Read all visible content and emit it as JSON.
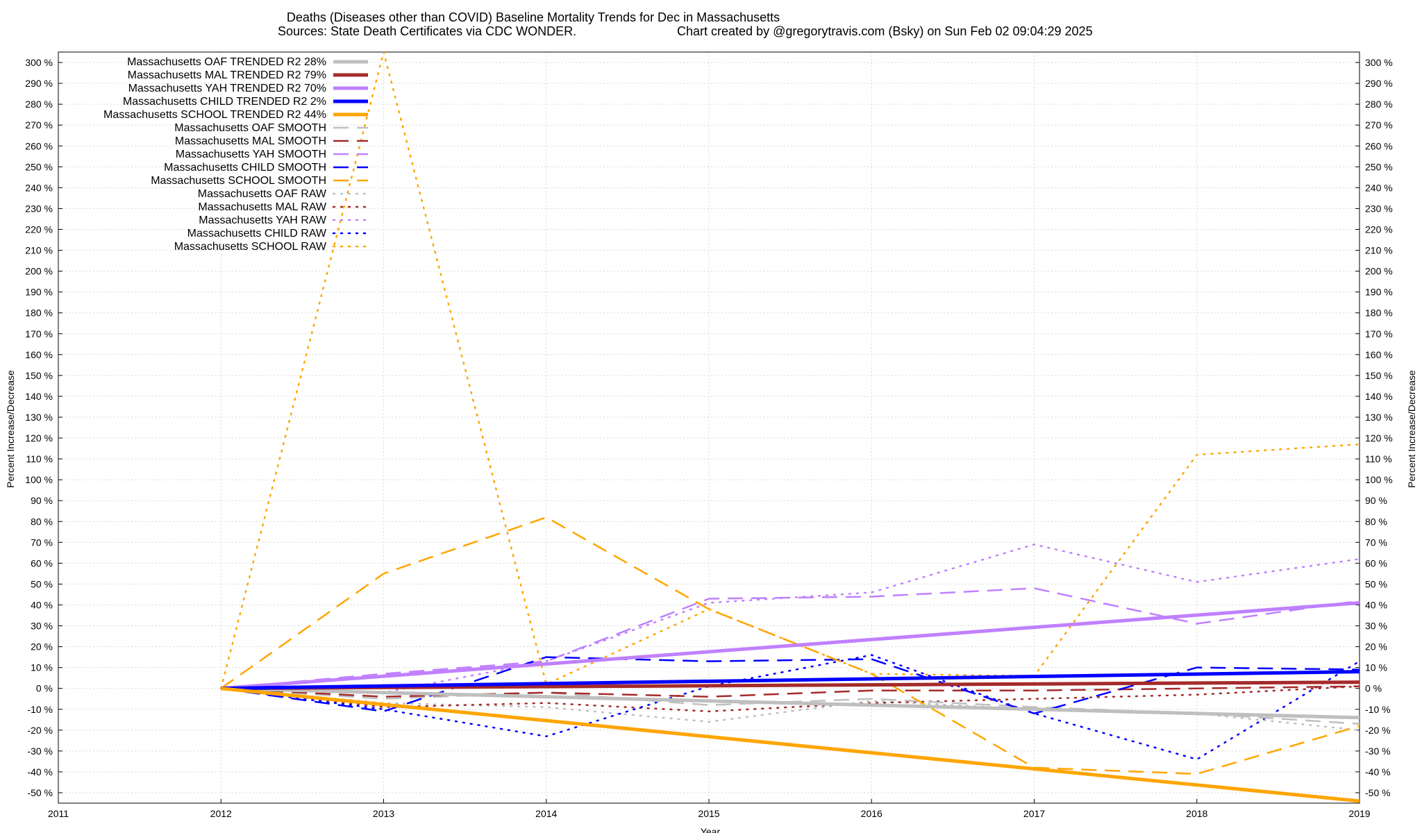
{
  "chart_data": {
    "type": "line",
    "title": "Deaths (Diseases other than COVID)  Baseline Mortality Trends for Dec in Massachusetts",
    "subtitle_left": "Sources: State Death Certificates via CDC WONDER.",
    "subtitle_right": "Chart created by @gregorytravis.com (Bsky) on Sun Feb 02 09:04:29 2025",
    "xlabel": "Year",
    "ylabel": "Percent Increase/Decrease",
    "xlim": [
      2011,
      2019
    ],
    "ylim": [
      -55,
      305
    ],
    "x_ticks": [
      "2011",
      "2012",
      "2013",
      "2014",
      "2015",
      "2016",
      "2017",
      "2018",
      "2019"
    ],
    "y_ticks_left": [
      "300 %",
      "290 %",
      "280 %",
      "270 %",
      "260 %",
      "250 %",
      "240 %",
      "230 %",
      "220 %",
      "210 %",
      "200 %",
      "190 %",
      "180 %",
      "170 %",
      "160 %",
      "150 %",
      "140 %",
      "130 %",
      "120 %",
      "110 %",
      "100 %",
      "90 %",
      "80 %",
      "70 %",
      "60 %",
      "50 %",
      "40 %",
      "30 %",
      "20 %",
      "10 %",
      "0 %",
      "-10 %",
      "-20 %",
      "-30 %",
      "-40 %",
      "-50 %"
    ],
    "y_ticks_right": [
      "300 %",
      "290 %",
      "280 %",
      "270 %",
      "260 %",
      "250 %",
      "240 %",
      "230 %",
      "220 %",
      "210 %",
      "200 %",
      "190 %",
      "180 %",
      "170 %",
      "160 %",
      "150 %",
      "140 %",
      "130 %",
      "120 %",
      "110 %",
      "100 %",
      "90 %",
      "80 %",
      "70 %",
      "60 %",
      "50 %",
      "40 %",
      "30 %",
      "20 %",
      "10 %",
      "0 %",
      "-10 %",
      "-20 %",
      "-30 %",
      "-40 %",
      "-50 %"
    ],
    "legend_position": "top-left",
    "grid": true,
    "series": [
      {
        "name": "Massachusetts OAF TRENDED R2  28%",
        "style": "solid",
        "color": "#bfbfbf",
        "x": [
          2012,
          2019
        ],
        "y": [
          0,
          -14
        ]
      },
      {
        "name": "Massachusetts MAL TRENDED R2  79%",
        "style": "solid",
        "color": "#a52a2a",
        "x": [
          2012,
          2019
        ],
        "y": [
          0,
          3
        ]
      },
      {
        "name": "Massachusetts YAH TRENDED R2  70%",
        "style": "solid",
        "color": "#c080ff",
        "x": [
          2012,
          2019
        ],
        "y": [
          0,
          41
        ]
      },
      {
        "name": "Massachusetts CHILD TRENDED R2  2%",
        "style": "solid",
        "color": "#0000ff",
        "x": [
          2012,
          2019
        ],
        "y": [
          0,
          8
        ]
      },
      {
        "name": "Massachusetts SCHOOL TRENDED R2  44%",
        "style": "solid",
        "color": "#ffa500",
        "x": [
          2012,
          2019
        ],
        "y": [
          0,
          -54
        ]
      },
      {
        "name": "Massachusetts OAF SMOOTH",
        "style": "dashed",
        "color": "#bfbfbf",
        "x": [
          2012,
          2013,
          2014,
          2015,
          2016,
          2017,
          2018,
          2019
        ],
        "y": [
          0,
          -5,
          -2,
          -8,
          -5,
          -9,
          -12,
          -17
        ]
      },
      {
        "name": "Massachusetts MAL SMOOTH",
        "style": "dashed",
        "color": "#a52a2a",
        "x": [
          2012,
          2013,
          2014,
          2015,
          2016,
          2017,
          2018,
          2019
        ],
        "y": [
          0,
          -4,
          -2,
          -4,
          -1,
          -1,
          0,
          1
        ]
      },
      {
        "name": "Massachusetts YAH SMOOTH",
        "style": "dashed",
        "color": "#c080ff",
        "x": [
          2012,
          2013,
          2014,
          2015,
          2016,
          2017,
          2018,
          2019
        ],
        "y": [
          0,
          7,
          13,
          43,
          44,
          48,
          31,
          42
        ]
      },
      {
        "name": "Massachusetts CHILD SMOOTH",
        "style": "dashed",
        "color": "#0000ff",
        "x": [
          2012,
          2013,
          2014,
          2015,
          2016,
          2017,
          2018,
          2019
        ],
        "y": [
          0,
          -11,
          15,
          13,
          14,
          -12,
          10,
          9
        ]
      },
      {
        "name": "Massachusetts SCHOOL SMOOTH",
        "style": "dashed",
        "color": "#ffa500",
        "x": [
          2012,
          2013,
          2014,
          2015,
          2016,
          2017,
          2018,
          2019
        ],
        "y": [
          0,
          55,
          82,
          38,
          7,
          -38,
          -41,
          -18
        ]
      },
      {
        "name": "Massachusetts OAF RAW",
        "style": "dotted",
        "color": "#bfbfbf",
        "x": [
          2012,
          2013,
          2014,
          2015,
          2016,
          2017,
          2018,
          2019
        ],
        "y": [
          0,
          -7,
          -9,
          -16,
          -6,
          -10,
          -12,
          -20
        ]
      },
      {
        "name": "Massachusetts MAL RAW",
        "style": "dotted",
        "color": "#a52a2a",
        "x": [
          2012,
          2013,
          2014,
          2015,
          2016,
          2017,
          2018,
          2019
        ],
        "y": [
          0,
          -9,
          -7,
          -11,
          -7,
          -5,
          -3,
          1
        ]
      },
      {
        "name": "Massachusetts YAH RAW",
        "style": "dotted",
        "color": "#c080ff",
        "x": [
          2012,
          2013,
          2014,
          2015,
          2016,
          2017,
          2018,
          2019
        ],
        "y": [
          0,
          -2,
          13,
          41,
          46,
          69,
          51,
          62
        ]
      },
      {
        "name": "Massachusetts CHILD RAW",
        "style": "dotted",
        "color": "#0000ff",
        "x": [
          2012,
          2013,
          2014,
          2015,
          2016,
          2017,
          2018,
          2019
        ],
        "y": [
          0,
          -10,
          -23,
          1,
          16,
          -12,
          -34,
          13
        ]
      },
      {
        "name": "Massachusetts SCHOOL RAW",
        "style": "dotted",
        "color": "#ffa500",
        "x": [
          2012,
          2013,
          2014,
          2015,
          2016,
          2017,
          2018,
          2019
        ],
        "y": [
          0,
          305,
          2,
          38,
          7,
          6,
          112,
          117
        ]
      }
    ]
  }
}
